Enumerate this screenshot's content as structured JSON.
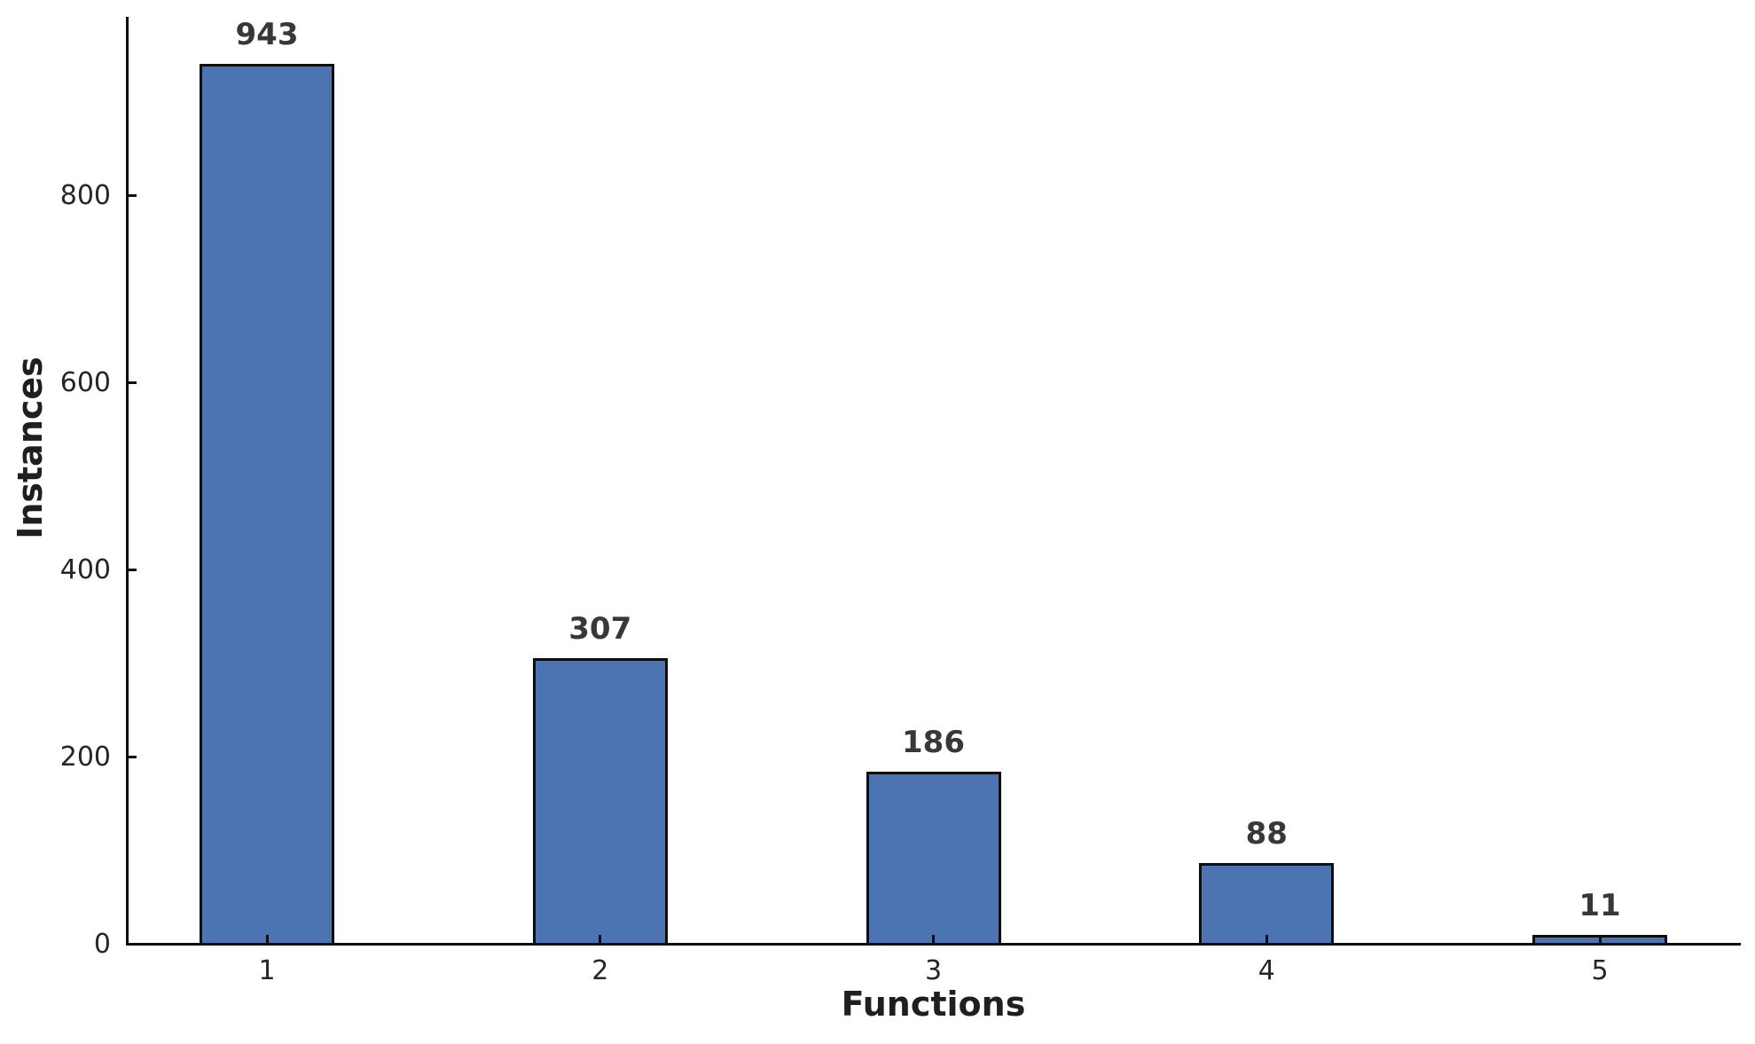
{
  "chart_data": {
    "type": "bar",
    "title": "",
    "xlabel": "Functions",
    "ylabel": "Instances",
    "categories": [
      "1",
      "2",
      "3",
      "4",
      "5"
    ],
    "values": [
      943,
      307,
      186,
      88,
      11
    ],
    "value_labels": [
      "943",
      "307",
      "186",
      "88",
      "11"
    ],
    "yticks": [
      0,
      200,
      400,
      600,
      800
    ],
    "ytick_labels": [
      "0",
      "200",
      "400",
      "600",
      "800"
    ],
    "ylim": [
      0,
      990
    ],
    "grid": false,
    "legend": "none",
    "colors": {
      "bar_fill": "#4C73B2",
      "bar_edge": "#0e0e0e",
      "axis": "#0e0e0e",
      "tick_text": "#262626",
      "value_text": "#383838",
      "axis_label_text": "#1f1f1f",
      "background": "#ffffff"
    }
  }
}
